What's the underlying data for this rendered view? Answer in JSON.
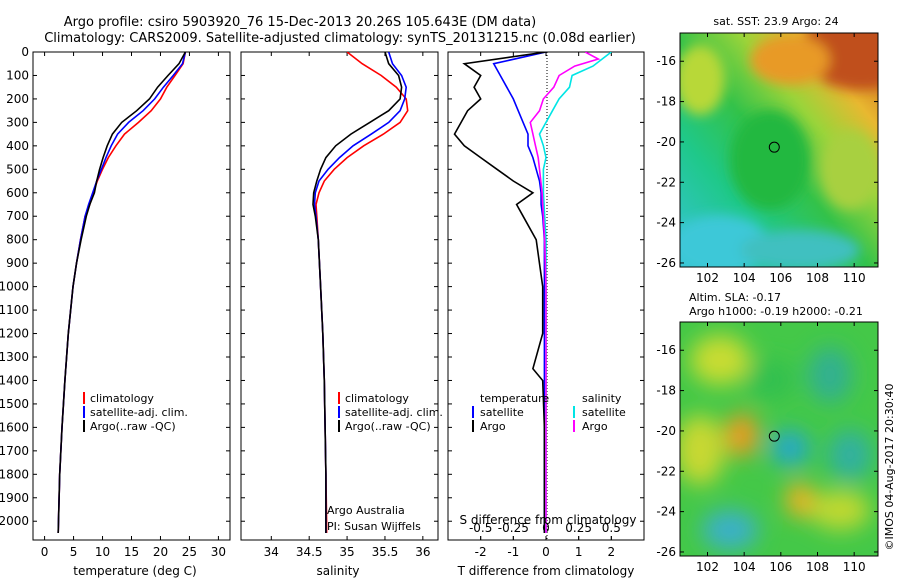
{
  "title_line1": "Argo profile: csiro 5903920_76 15-Dec-2013 20.26S 105.643E (DM data)",
  "title_line2": "Climatology: CARS2009. Satellite-adjusted climatology: synTS_20131215.nc (0.08d earlier)",
  "colors": {
    "climatology": "#ff0000",
    "satellite": "#0000ff",
    "argo": "#000000",
    "sat_salinity": "#00e5e5",
    "argo_salinity": "#ff00ff"
  },
  "depth_axis": {
    "ticks": [
      "0",
      "100",
      "200",
      "300",
      "400",
      "500",
      "600",
      "700",
      "800",
      "900",
      "1000",
      "1100",
      "1200",
      "1300",
      "1400",
      "1500",
      "1600",
      "1700",
      "1800",
      "1900",
      "2000"
    ],
    "range": [
      0,
      2080
    ]
  },
  "chart_data": [
    {
      "type": "line",
      "id": "temperature",
      "xlabel": "temperature (deg C)",
      "xlim": [
        -2,
        32
      ],
      "xticks": [
        "0",
        "5",
        "10",
        "15",
        "20",
        "25",
        "30"
      ],
      "xtick_values": [
        0,
        5,
        10,
        15,
        20,
        25,
        30
      ],
      "legend": [
        "climatology",
        "satellite-adj. clim.",
        "Argo(..raw -QC)"
      ],
      "series": [
        {
          "name": "climatology",
          "depth": [
            0,
            50,
            100,
            150,
            200,
            250,
            300,
            350,
            400,
            450,
            500,
            550,
            600,
            650,
            700,
            800,
            900,
            1000,
            1200,
            1400,
            1600,
            1800,
            2000,
            2050
          ],
          "values": [
            24.3,
            23.9,
            22.5,
            21.1,
            20.0,
            18.4,
            16.2,
            13.8,
            12.3,
            11.0,
            10.0,
            9.1,
            8.4,
            7.8,
            7.0,
            6.2,
            5.5,
            4.9,
            4.1,
            3.5,
            3.0,
            2.6,
            2.4,
            2.35
          ]
        },
        {
          "name": "satellite-adj. clim.",
          "depth": [
            0,
            50,
            100,
            150,
            200,
            250,
            300,
            350,
            400,
            450,
            500,
            550,
            600,
            650,
            700,
            800,
            900,
            1000,
            1200,
            1400,
            1600,
            1800,
            2000,
            2050
          ],
          "values": [
            24.3,
            23.8,
            22.2,
            20.5,
            19.0,
            17.0,
            14.5,
            12.6,
            11.5,
            10.6,
            9.8,
            9.0,
            8.3,
            7.6,
            7.0,
            6.2,
            5.5,
            4.9,
            4.1,
            3.5,
            3.0,
            2.6,
            2.4,
            2.35
          ]
        },
        {
          "name": "Argo(..raw -QC)",
          "depth": [
            0,
            50,
            100,
            150,
            200,
            250,
            300,
            350,
            400,
            450,
            500,
            550,
            600,
            650,
            700,
            800,
            900,
            1000,
            1200,
            1400,
            1600,
            1800,
            2000,
            2050
          ],
          "values": [
            24.3,
            23.2,
            21.3,
            19.5,
            18.1,
            15.9,
            13.3,
            11.7,
            10.8,
            10.1,
            9.5,
            9.0,
            8.6,
            7.8,
            7.2,
            6.3,
            5.5,
            4.9,
            4.1,
            3.5,
            3.0,
            2.6,
            2.4,
            2.35
          ]
        }
      ]
    },
    {
      "type": "line",
      "id": "salinity",
      "xlabel": "salinity",
      "xlim": [
        33.6,
        36.2
      ],
      "xticks": [
        "34",
        "34.5",
        "35",
        "35.5",
        "36"
      ],
      "xtick_values": [
        34,
        34.5,
        35,
        35.5,
        36
      ],
      "legend": [
        "climatology",
        "satellite-adj. clim.",
        "Argo(..raw -QC)"
      ],
      "annotation": [
        "Argo Australia",
        "PI: Susan Wijffels"
      ],
      "series": [
        {
          "name": "climatology",
          "depth": [
            0,
            50,
            100,
            150,
            200,
            250,
            300,
            350,
            400,
            450,
            500,
            550,
            600,
            650,
            700,
            800,
            1000,
            1200,
            1400,
            1600,
            1800,
            2000,
            2050
          ],
          "values": [
            35.0,
            35.2,
            35.45,
            35.65,
            35.78,
            35.8,
            35.7,
            35.48,
            35.22,
            35.0,
            34.83,
            34.7,
            34.63,
            34.59,
            34.6,
            34.62,
            34.65,
            34.68,
            34.7,
            34.71,
            34.72,
            34.73,
            34.73
          ]
        },
        {
          "name": "satellite-adj. clim.",
          "depth": [
            0,
            50,
            100,
            150,
            200,
            250,
            300,
            350,
            400,
            450,
            500,
            550,
            600,
            650,
            700,
            800,
            1000,
            1200,
            1400,
            1600,
            1800,
            2000,
            2050
          ],
          "values": [
            35.55,
            35.6,
            35.72,
            35.78,
            35.76,
            35.7,
            35.55,
            35.32,
            35.08,
            34.9,
            34.75,
            34.63,
            34.58,
            34.57,
            34.59,
            34.62,
            34.65,
            34.68,
            34.7,
            34.71,
            34.72,
            34.72,
            34.72
          ]
        },
        {
          "name": "Argo(..raw -QC)",
          "depth": [
            0,
            50,
            100,
            150,
            200,
            250,
            300,
            350,
            400,
            450,
            500,
            550,
            600,
            650,
            700,
            800,
            1000,
            1200,
            1400,
            1600,
            1800,
            2000,
            2050
          ],
          "values": [
            35.5,
            35.55,
            35.68,
            35.72,
            35.7,
            35.55,
            35.3,
            35.05,
            34.85,
            34.72,
            34.65,
            34.6,
            34.56,
            34.55,
            34.58,
            34.62,
            34.65,
            34.68,
            34.7,
            34.71,
            34.72,
            34.72,
            34.72
          ]
        }
      ]
    },
    {
      "type": "line",
      "id": "difference",
      "xlabel": "T difference from climatology",
      "xlabel_top": "S difference from climatology",
      "xlim": [
        -3,
        3
      ],
      "xticks": [
        "-2",
        "-1",
        "0",
        "1",
        "2"
      ],
      "xtick_values": [
        -2,
        -1,
        0,
        1,
        2
      ],
      "xticks_top": [
        "-0.5",
        "-0.25",
        "0",
        "0.25",
        "0.5"
      ],
      "xtick_top_values": [
        -0.5,
        -0.25,
        0,
        0.25,
        0.5
      ],
      "legend_temperature_title": "temperature",
      "legend_salinity_title": "salinity",
      "legend_temperature": [
        "satellite",
        "Argo"
      ],
      "legend_salinity": [
        "satellite",
        "Argo"
      ],
      "series": [
        {
          "name": "temperature satellite",
          "depth": [
            0,
            50,
            100,
            150,
            200,
            250,
            300,
            350,
            400,
            450,
            500,
            550,
            600,
            650,
            700,
            800,
            1000,
            1200,
            1400,
            1600,
            1800,
            2000,
            2050
          ],
          "values": [
            0,
            -1.6,
            -1.4,
            -1.2,
            -1.0,
            -0.85,
            -0.7,
            -0.55,
            -0.55,
            -0.4,
            -0.3,
            -0.2,
            -0.15,
            -0.15,
            -0.1,
            -0.05,
            -0.05,
            -0.05,
            -0.05,
            -0.05,
            -0.05,
            -0.05,
            -0.05
          ]
        },
        {
          "name": "temperature Argo",
          "depth": [
            0,
            50,
            100,
            150,
            200,
            250,
            300,
            350,
            400,
            450,
            500,
            550,
            600,
            650,
            700,
            800,
            1000,
            1200,
            1350,
            1400,
            1600,
            1800,
            2000,
            2050
          ],
          "values": [
            0,
            -2.5,
            -2.0,
            -2.2,
            -2.0,
            -2.4,
            -2.6,
            -2.8,
            -2.5,
            -2.0,
            -1.5,
            -1.0,
            -0.4,
            -0.9,
            -0.7,
            -0.3,
            -0.1,
            -0.1,
            -0.4,
            -0.1,
            -0.05,
            -0.05,
            -0.05,
            -0.05
          ]
        },
        {
          "name": "salinity satellite",
          "depth": [
            0,
            30,
            60,
            100,
            150,
            200,
            250,
            300,
            350,
            400,
            450,
            500,
            600,
            700,
            800,
            1000,
            1200,
            1400,
            1600,
            1800,
            2000,
            2050
          ],
          "values": [
            0.5,
            0.43,
            0.36,
            0.2,
            0.18,
            0.1,
            0.05,
            0.0,
            -0.05,
            -0.02,
            0.0,
            -0.02,
            -0.02,
            -0.01,
            0.0,
            0.0,
            0.0,
            0.0,
            0.0,
            0.0,
            0.0,
            0.0
          ]
        },
        {
          "name": "salinity Argo",
          "depth": [
            0,
            30,
            60,
            100,
            150,
            200,
            250,
            300,
            350,
            400,
            450,
            500,
            600,
            700,
            800,
            1000,
            1200,
            1400,
            1600,
            1800,
            2000,
            2050
          ],
          "values": [
            0.3,
            0.4,
            0.22,
            0.1,
            0.06,
            -0.02,
            -0.05,
            -0.12,
            -0.1,
            -0.08,
            -0.06,
            -0.05,
            -0.03,
            -0.02,
            -0.01,
            0.0,
            0.0,
            0.0,
            0.0,
            0.0,
            0.0,
            0.0
          ]
        }
      ]
    },
    {
      "type": "heatmap",
      "id": "sst_map",
      "title": "sat. SST: 23.9 Argo: 24",
      "xticks": [
        "102",
        "104",
        "106",
        "108",
        "110"
      ],
      "xtick_values": [
        102,
        104,
        106,
        108,
        110
      ],
      "yticks": [
        "-16",
        "-18",
        "-20",
        "-22",
        "-24",
        "-26"
      ],
      "ytick_values": [
        -16,
        -18,
        -20,
        -22,
        -24,
        -26
      ],
      "xlim": [
        100.5,
        111.3
      ],
      "ylim": [
        -26.2,
        -14.6
      ],
      "marker": {
        "lon": 105.643,
        "lat": -20.26
      }
    },
    {
      "type": "heatmap",
      "id": "sla_map",
      "title_line1": "Altim. SLA: -0.17",
      "title_line2": "Argo h1000: -0.19 h2000: -0.21",
      "xticks": [
        "102",
        "104",
        "106",
        "108",
        "110"
      ],
      "xtick_values": [
        102,
        104,
        106,
        108,
        110
      ],
      "yticks": [
        "-16",
        "-18",
        "-20",
        "-22",
        "-24",
        "-26"
      ],
      "ytick_values": [
        -16,
        -18,
        -20,
        -22,
        -24,
        -26
      ],
      "xlim": [
        100.5,
        111.3
      ],
      "ylim": [
        -26.2,
        -14.6
      ],
      "marker": {
        "lon": 105.643,
        "lat": -20.26
      }
    }
  ],
  "side_label": "©IMOS 04-Aug-2017 20:30:40"
}
